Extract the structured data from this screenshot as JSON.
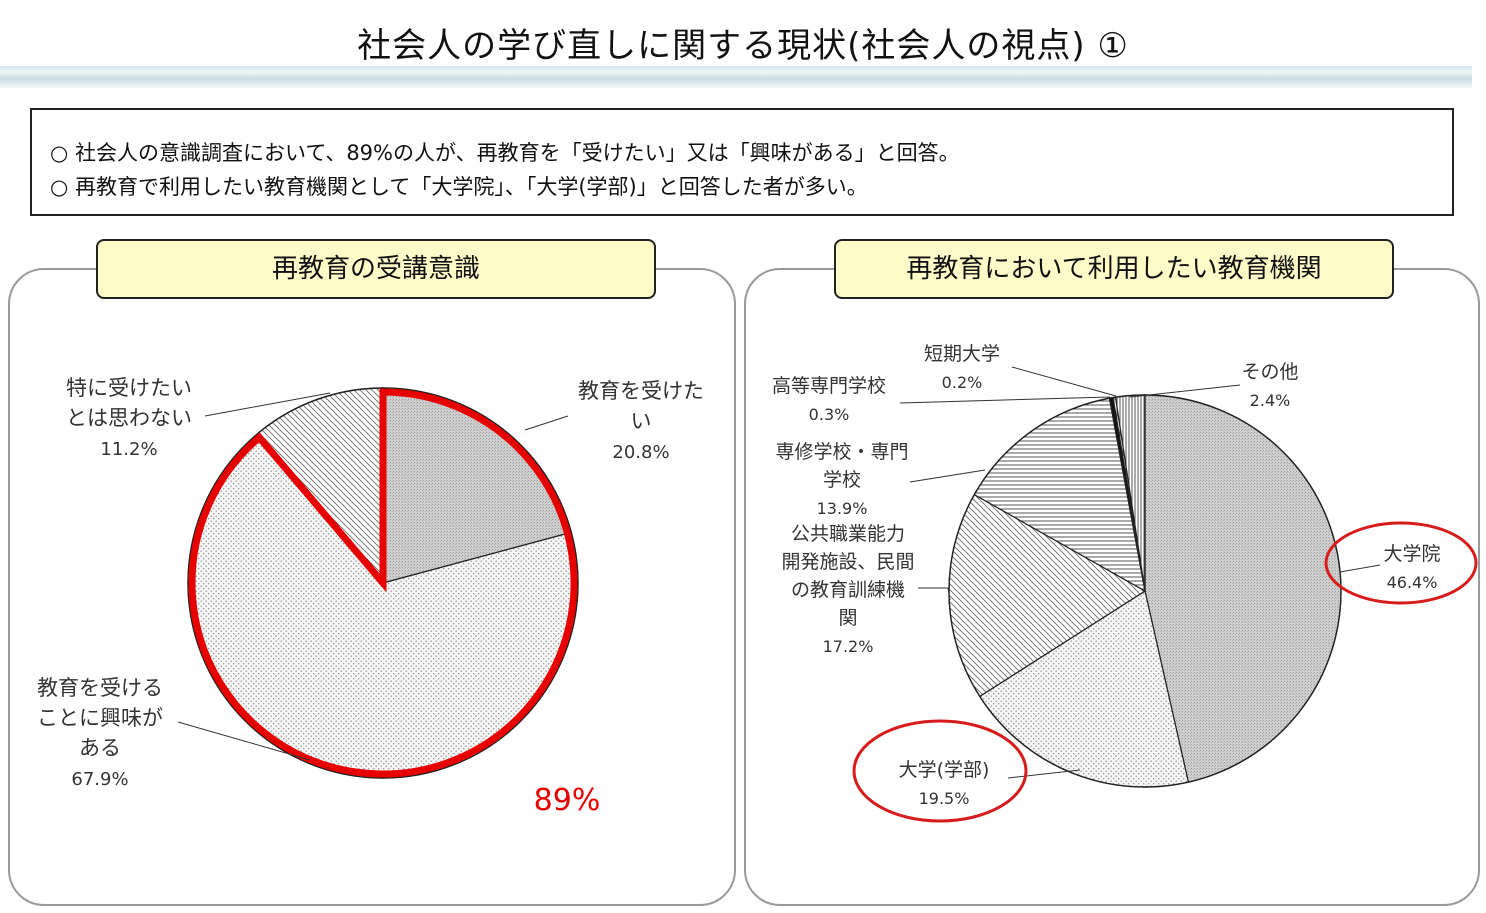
{
  "page": {
    "title": "社会人の学び直しに関する現状(社会人の視点) ①"
  },
  "summary": {
    "lines": [
      "○  社会人の意識調査において、89%の人が、再教育を「受けたい」又は「興味がある」と回答。",
      "○  再教育で利用したい教育機関として「大学院」、「大学(学部)」と回答した者が多い。"
    ]
  },
  "left_panel": {
    "label": "再教育の受講意識",
    "highlight_value": "89%",
    "highlight_color": "#e60000"
  },
  "right_panel": {
    "label": "再教育において利用したい教育機関",
    "highlight_color": "#d81c1c"
  },
  "chart_data": [
    {
      "type": "pie",
      "title": "再教育の受講意識",
      "slices": [
        {
          "label_lines": [
            "教育を受けた",
            "い"
          ],
          "value": 20.8,
          "value_text": "20.8%",
          "pattern": "gray"
        },
        {
          "label_lines": [
            "教育を受ける",
            "ことに興味が",
            "ある"
          ],
          "value": 67.9,
          "value_text": "67.9%",
          "pattern": "dots"
        },
        {
          "label_lines": [
            "特に受けたい",
            "とは思わない"
          ],
          "value": 11.2,
          "value_text": "11.2%",
          "pattern": "diag"
        }
      ],
      "annotation": "89%"
    },
    {
      "type": "pie",
      "title": "再教育において利用したい教育機関",
      "slices": [
        {
          "label_lines": [
            "大学院"
          ],
          "value": 46.4,
          "value_text": "46.4%",
          "pattern": "gray",
          "circled": true
        },
        {
          "label_lines": [
            "大学(学部)"
          ],
          "value": 19.5,
          "value_text": "19.5%",
          "pattern": "dots",
          "circled": true
        },
        {
          "label_lines": [
            "公共職業能力",
            "開発施設、民間",
            "の教育訓練機",
            "関"
          ],
          "value": 17.2,
          "value_text": "17.2%",
          "pattern": "diag"
        },
        {
          "label_lines": [
            "専修学校・専門",
            "学校"
          ],
          "value": 13.9,
          "value_text": "13.9%",
          "pattern": "hlines"
        },
        {
          "label_lines": [
            "高等専門学校"
          ],
          "value": 0.3,
          "value_text": "0.3%",
          "pattern": "black"
        },
        {
          "label_lines": [
            "短期大学"
          ],
          "value": 0.2,
          "value_text": "0.2%",
          "pattern": "vlines"
        },
        {
          "label_lines": [
            "その他"
          ],
          "value": 2.4,
          "value_text": "2.4%",
          "pattern": "vlines"
        }
      ]
    }
  ]
}
